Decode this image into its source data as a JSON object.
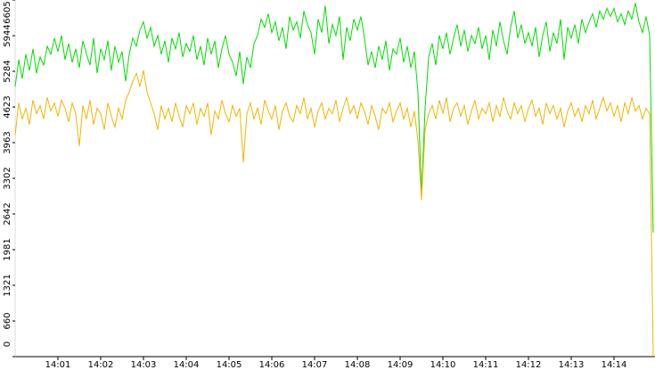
{
  "chart_data": {
    "type": "line",
    "categories": [
      null,
      null,
      null,
      null,
      null,
      null,
      null,
      null,
      null,
      null,
      null,
      null,
      "14:01",
      null,
      null,
      null,
      null,
      null,
      null,
      null,
      null,
      null,
      null,
      null,
      "14:02",
      null,
      null,
      null,
      null,
      null,
      null,
      null,
      null,
      null,
      null,
      null,
      "14:03",
      null,
      null,
      null,
      null,
      null,
      null,
      null,
      null,
      null,
      null,
      null,
      "14:04",
      null,
      null,
      null,
      null,
      null,
      null,
      null,
      null,
      null,
      null,
      null,
      "14:05",
      null,
      null,
      null,
      null,
      null,
      null,
      null,
      null,
      null,
      null,
      null,
      "14:06",
      null,
      null,
      null,
      null,
      null,
      null,
      null,
      null,
      null,
      null,
      null,
      "14:07",
      null,
      null,
      null,
      null,
      null,
      null,
      null,
      null,
      null,
      null,
      null,
      "14:08",
      null,
      null,
      null,
      null,
      null,
      null,
      null,
      null,
      null,
      null,
      null,
      "14:09",
      null,
      null,
      null,
      null,
      null,
      null,
      null,
      null,
      null,
      null,
      null,
      "14:10",
      null,
      null,
      null,
      null,
      null,
      null,
      null,
      null,
      null,
      null,
      null,
      "14:11",
      null,
      null,
      null,
      null,
      null,
      null,
      null,
      null,
      null,
      null,
      null,
      "14:12",
      null,
      null,
      null,
      null,
      null,
      null,
      null,
      null,
      null,
      null,
      null,
      "14:13",
      null,
      null,
      null,
      null,
      null,
      null,
      null,
      null,
      null,
      null,
      null,
      "14:14",
      null,
      null,
      null,
      null,
      null,
      null,
      null,
      null,
      null,
      null,
      null
    ],
    "series": [
      {
        "color": "#00dd00",
        "values": [
          5000,
          5500,
          5150,
          5600,
          5300,
          5700,
          5250,
          5550,
          5400,
          5750,
          5600,
          5900,
          5650,
          5950,
          5500,
          5800,
          5450,
          5700,
          5350,
          5850,
          5600,
          5400,
          5900,
          5250,
          5700,
          5500,
          5850,
          5300,
          5750,
          5450,
          5650,
          5100,
          5600,
          5900,
          5750,
          6050,
          6200,
          5900,
          6100,
          5750,
          5950,
          5600,
          5850,
          5450,
          5900,
          5700,
          6000,
          5550,
          5800,
          5650,
          5950,
          5500,
          5750,
          5400,
          5900,
          5600,
          5850,
          5350,
          5700,
          5950,
          5600,
          5450,
          5200,
          5650,
          5050,
          5550,
          5350,
          5800,
          5950,
          6250,
          6100,
          6350,
          6000,
          6200,
          5850,
          6100,
          5700,
          6300,
          6050,
          6200,
          5900,
          6400,
          6150,
          6000,
          5600,
          6250,
          6000,
          6500,
          5800,
          6150,
          5950,
          6300,
          5500,
          6100,
          5850,
          6250,
          6050,
          6300,
          5900,
          5400,
          5650,
          5350,
          5750,
          5500,
          5850,
          5300,
          5700,
          5600,
          5900,
          5450,
          5750,
          5350,
          5650,
          4900,
          3000,
          4600,
          5550,
          5800,
          5400,
          5950,
          5700,
          6000,
          5600,
          5900,
          6150,
          5750,
          6050,
          5650,
          5950,
          5800,
          6100,
          5700,
          5950,
          5500,
          6050,
          5750,
          6200,
          5850,
          5600,
          6100,
          6400,
          5900,
          6150,
          5800,
          6000,
          5750,
          6100,
          5550,
          5950,
          6200,
          5650,
          6000,
          5800,
          6250,
          5500,
          6100,
          5900,
          6150,
          5800,
          6250,
          6000,
          6200,
          6350,
          6100,
          6400,
          6250,
          6450,
          6300,
          6450,
          6200,
          6350,
          6150,
          6400,
          6250,
          6550,
          6200,
          6000,
          6300,
          5950,
          2300
        ]
      },
      {
        "color": "#f0b400",
        "values": [
          4100,
          4700,
          4400,
          4600,
          4300,
          4750,
          4500,
          4650,
          4400,
          4800,
          4550,
          4700,
          4450,
          4750,
          4600,
          4350,
          4700,
          4500,
          3900,
          4650,
          4400,
          4750,
          4300,
          4600,
          4500,
          4200,
          4700,
          4450,
          4250,
          4600,
          4400,
          4750,
          4900,
          5100,
          5250,
          5000,
          5300,
          4900,
          4700,
          4500,
          4200,
          4650,
          4400,
          4600,
          4350,
          4700,
          4450,
          4250,
          4650,
          4500,
          4700,
          4300,
          4600,
          4450,
          4700,
          4100,
          4550,
          4400,
          4750,
          4500,
          4350,
          4650,
          4450,
          4600,
          3600,
          4500,
          4700,
          4400,
          4600,
          4300,
          4750,
          4550,
          4400,
          4650,
          4200,
          4550,
          4700,
          4450,
          4350,
          4650,
          4500,
          4800,
          4400,
          4600,
          4250,
          4550,
          4700,
          4400,
          4600,
          4500,
          4750,
          4350,
          4600,
          4800,
          4500,
          4650,
          4400,
          4700,
          4550,
          4300,
          4650,
          4450,
          4200,
          4600,
          4500,
          4700,
          4350,
          4550,
          4700,
          4400,
          4600,
          4250,
          4550,
          4000,
          2900,
          4200,
          4500,
          4650,
          4400,
          4750,
          4500,
          4800,
          4350,
          4600,
          4700,
          4450,
          4650,
          4300,
          4550,
          4750,
          4400,
          4600,
          4500,
          4700,
          4350,
          4650,
          4450,
          4800,
          4550,
          4400,
          4700,
          4500,
          4650,
          4350,
          4600,
          4750,
          4450,
          4600,
          4300,
          4700,
          4500,
          4650,
          4400,
          4600,
          4250,
          4550,
          4700,
          4450,
          4600,
          4350,
          4650,
          4500,
          4750,
          4400,
          4600,
          4800,
          4550,
          4700,
          4450,
          4650,
          4350,
          4700,
          4500,
          4800,
          4550,
          4650,
          4400,
          4600,
          4500,
          0
        ]
      }
    ],
    "ylim": [
      0,
      6605
    ],
    "yticks": [
      0,
      660,
      1321,
      1981,
      2642,
      3302,
      3963,
      4623,
      5284,
      5944,
      6605
    ]
  }
}
